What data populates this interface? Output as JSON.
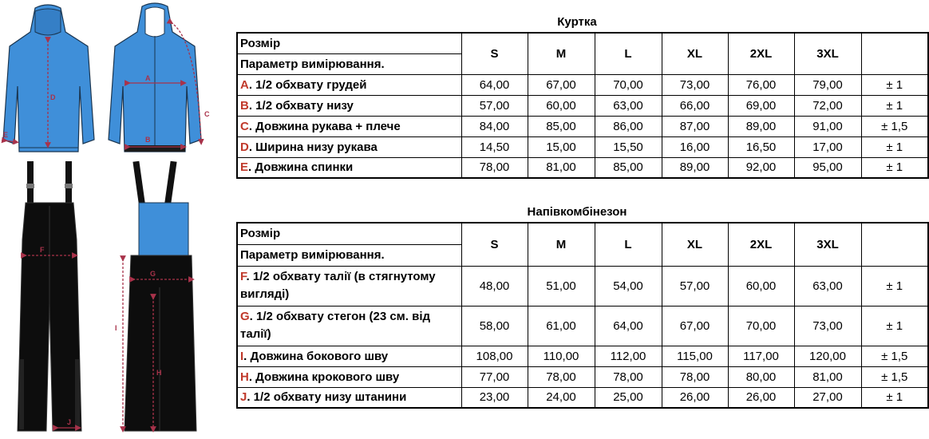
{
  "figure_labels": {
    "jacket_back": [
      "D",
      "E"
    ],
    "jacket_front": [
      "A",
      "B",
      "C"
    ],
    "bib_front": [
      "F",
      "J"
    ],
    "bib_side": [
      "G",
      "I",
      "H"
    ]
  },
  "jacket": {
    "title": "Куртка",
    "header": {
      "row1": "Розмір",
      "row2": "Параметр вимірювання."
    },
    "sizes": [
      "S",
      "M",
      "L",
      "XL",
      "2XL",
      "3XL"
    ],
    "rows": [
      {
        "letter": "A",
        "label": ". 1/2 обхвату грудей",
        "values": [
          "64,00",
          "67,00",
          "70,00",
          "73,00",
          "76,00",
          "79,00"
        ],
        "tol": "± 1"
      },
      {
        "letter": "B",
        "label": ". 1/2 обхвату низу",
        "values": [
          "57,00",
          "60,00",
          "63,00",
          "66,00",
          "69,00",
          "72,00"
        ],
        "tol": "± 1"
      },
      {
        "letter": "C",
        "label": ". Довжина рукава + плече",
        "values": [
          "84,00",
          "85,00",
          "86,00",
          "87,00",
          "89,00",
          "91,00"
        ],
        "tol": "± 1,5"
      },
      {
        "letter": "D",
        "label": ". Ширина низу рукава",
        "values": [
          "14,50",
          "15,00",
          "15,50",
          "16,00",
          "16,50",
          "17,00"
        ],
        "tol": "± 1"
      },
      {
        "letter": "E",
        "label": ". Довжина спинки",
        "values": [
          "78,00",
          "81,00",
          "85,00",
          "89,00",
          "92,00",
          "95,00"
        ],
        "tol": "± 1"
      }
    ]
  },
  "bib": {
    "title": "Напівкомбінезон",
    "header": {
      "row1": "Розмір",
      "row2": "Параметр вимірювання."
    },
    "sizes": [
      "S",
      "M",
      "L",
      "XL",
      "2XL",
      "3XL"
    ],
    "rows": [
      {
        "letter": "F",
        "label": ". 1/2 обхвату талії (в стягнутому вигляді)",
        "values": [
          "48,00",
          "51,00",
          "54,00",
          "57,00",
          "60,00",
          "63,00"
        ],
        "tol": "± 1"
      },
      {
        "letter": "G",
        "label": ". 1/2 обхвату стегон (23 см. від талії)",
        "values": [
          "58,00",
          "61,00",
          "64,00",
          "67,00",
          "70,00",
          "73,00"
        ],
        "tol": "± 1"
      },
      {
        "letter": "I",
        "label": ". Довжина бокового шву",
        "values": [
          "108,00",
          "110,00",
          "112,00",
          "115,00",
          "117,00",
          "120,00"
        ],
        "tol": "± 1,5"
      },
      {
        "letter": "H",
        "label": ". Довжина крокового шву",
        "values": [
          "77,00",
          "78,00",
          "78,00",
          "78,00",
          "80,00",
          "81,00"
        ],
        "tol": "± 1,5"
      },
      {
        "letter": "J",
        "label": ". 1/2 обхвату низу штанини",
        "values": [
          "23,00",
          "24,00",
          "25,00",
          "26,00",
          "26,00",
          "27,00"
        ],
        "tol": "± 1"
      }
    ]
  }
}
